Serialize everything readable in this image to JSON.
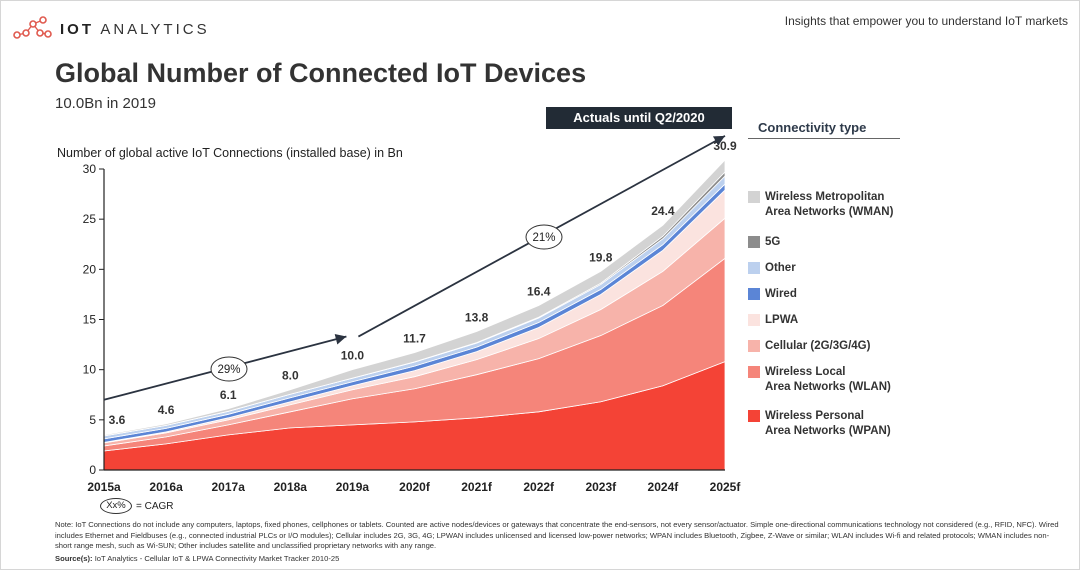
{
  "header": {
    "logo_bold": "IOT",
    "logo_rest": "ANALYTICS",
    "tagline": "Insights that empower you to understand IoT markets"
  },
  "title": "Global Number of Connected IoT Devices",
  "subtitle": "10.0Bn in 2019",
  "actuals_label": "Actuals until Q2/2020",
  "legend_title": "Connectivity type",
  "cagr_legend": {
    "symbol": "Xx%",
    "text": "= CAGR"
  },
  "note": "Note: IoT Connections do not include any computers, laptops, fixed phones, cellphones or tablets. Counted are active nodes/devices or gateways that concentrate the end-sensors, not every sensor/actuator. Simple one-directional communications technology not considered (e.g., RFID, NFC). Wired includes Ethernet and Fieldbuses (e.g., connected industrial PLCs or I/O modules); Cellular includes 2G, 3G, 4G;  LPWAN includes unlicensed and licensed low-power networks; WPAN includes Bluetooth, Zigbee, Z-Wave or similar; WLAN includes Wi-fi and related protocols; WMAN includes non-short range mesh, such as Wi-SUN; Other includes satellite and unclassified proprietary networks with any range.",
  "source_label": "Source(s):",
  "source_text": "IoT Analytics - Cellular IoT & LPWA Connectivity Market Tracker 2010-25",
  "chart_data": {
    "type": "area",
    "stacked": true,
    "title": "Global Number of Connected IoT Devices",
    "ylabel": "Number of global active IoT Connections (installed base) in Bn",
    "xlabel": "",
    "ylim": [
      0,
      30
    ],
    "yticks": [
      0,
      5,
      10,
      15,
      20,
      25,
      30
    ],
    "categories": [
      "2015a",
      "2016a",
      "2017a",
      "2018a",
      "2019a",
      "2020f",
      "2021f",
      "2022f",
      "2023f",
      "2024f",
      "2025f"
    ],
    "totals": [
      3.6,
      4.6,
      6.1,
      8.0,
      10.0,
      11.7,
      13.8,
      16.4,
      19.8,
      24.4,
      30.9
    ],
    "total_labels": [
      "3.6",
      "4.6",
      "6.1",
      "8.0",
      "10.0",
      "11.7",
      "13.8",
      "16.4",
      "19.8",
      "24.4",
      "30.9"
    ],
    "series": [
      {
        "name": "Wireless Personal\nArea Networks (WPAN)",
        "color": "#f44336",
        "values": [
          1.9,
          2.6,
          3.5,
          4.2,
          4.5,
          4.8,
          5.2,
          5.8,
          6.8,
          8.4,
          10.8
        ]
      },
      {
        "name": "Wireless Local\nArea Networks (WLAN)",
        "color": "#f5857a",
        "values": [
          0.5,
          0.7,
          1.0,
          1.6,
          2.6,
          3.3,
          4.3,
          5.3,
          6.6,
          8.0,
          10.3
        ]
      },
      {
        "name": "Cellular (2G/3G/4G)",
        "color": "#f7b3aa",
        "values": [
          0.3,
          0.4,
          0.5,
          0.7,
          0.9,
          1.2,
          1.5,
          2.0,
          2.6,
          3.4,
          4.0
        ]
      },
      {
        "name": "LPWA",
        "color": "#fbe3df",
        "values": [
          0.05,
          0.1,
          0.2,
          0.3,
          0.4,
          0.6,
          0.8,
          1.1,
          1.5,
          2.1,
          2.8
        ]
      },
      {
        "name": "Wired",
        "color": "#5b85d6",
        "values": [
          0.35,
          0.35,
          0.35,
          0.4,
          0.4,
          0.45,
          0.45,
          0.5,
          0.5,
          0.55,
          0.6
        ]
      },
      {
        "name": "Other",
        "color": "#bcd0ee",
        "values": [
          0.3,
          0.3,
          0.3,
          0.35,
          0.35,
          0.4,
          0.4,
          0.45,
          0.5,
          0.6,
          0.8
        ]
      },
      {
        "name": "5G",
        "color": "#8c8c8c",
        "values": [
          0,
          0,
          0,
          0,
          0,
          0.02,
          0.05,
          0.08,
          0.12,
          0.25,
          0.4
        ]
      },
      {
        "name": "Wireless Metropolitan\nArea Networks (WMAN)",
        "color": "#d3d3d3",
        "values": [
          0.1,
          0.15,
          0.25,
          0.45,
          0.85,
          0.93,
          1.1,
          1.17,
          1.18,
          1.1,
          1.2
        ]
      }
    ],
    "cagr_annotations": [
      {
        "label": "29%",
        "from": "2015a",
        "to": "2019a"
      },
      {
        "label": "21%",
        "from": "2019a",
        "to": "2025f"
      }
    ]
  }
}
